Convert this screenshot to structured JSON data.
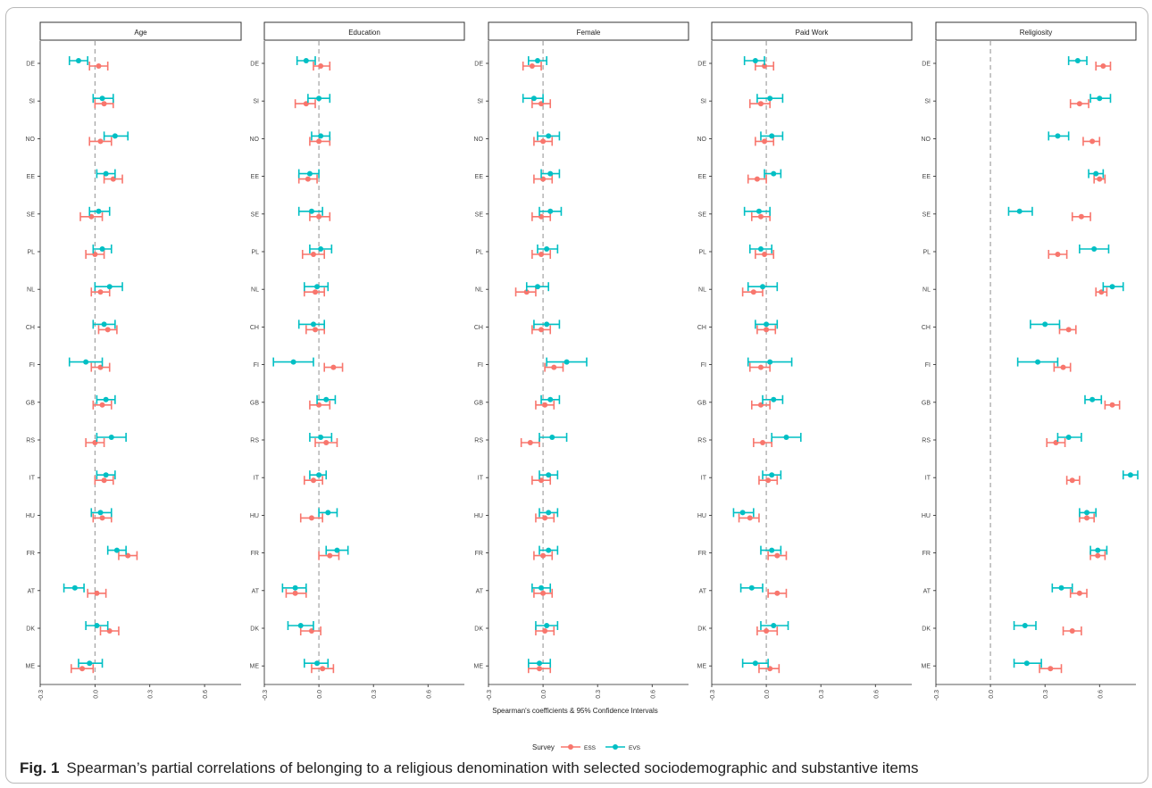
{
  "chart_data": {
    "type": "scatter",
    "subtype": "dot-and-whisker (point estimates with 95% confidence intervals), faceted",
    "xlabel": "Spearman's coefficients & 95% Confidence Intervals",
    "x_ticks": [
      "-0.3",
      "0.0",
      "0.3",
      "0.6"
    ],
    "xlim": [
      -0.3,
      0.8
    ],
    "reference_line_x": 0,
    "grid": false,
    "legend": {
      "title": "Survey",
      "position": "bottom",
      "entries": [
        "ESS",
        "EVS"
      ]
    },
    "colors": {
      "ESS": "#F8766D",
      "EVS": "#00BFC4",
      "refline": "#999999",
      "strip_border": "#333333"
    },
    "countries": [
      "DE",
      "SI",
      "NO",
      "EE",
      "SE",
      "PL",
      "NL",
      "CH",
      "FI",
      "GB",
      "RS",
      "IT",
      "HU",
      "FR",
      "AT",
      "DK",
      "ME"
    ],
    "facets": [
      {
        "name": "Age",
        "series": [
          {
            "name": "ESS",
            "values": [
              0.02,
              0.05,
              0.03,
              0.1,
              -0.02,
              0.0,
              0.03,
              0.07,
              0.03,
              0.04,
              0.0,
              0.05,
              0.04,
              0.18,
              0.01,
              0.08,
              -0.07
            ],
            "lower": [
              -0.03,
              0.0,
              -0.03,
              0.05,
              -0.08,
              -0.05,
              -0.02,
              0.02,
              -0.02,
              -0.01,
              -0.05,
              0.0,
              -0.01,
              0.13,
              -0.04,
              0.03,
              -0.13
            ],
            "upper": [
              0.07,
              0.1,
              0.09,
              0.15,
              0.04,
              0.05,
              0.08,
              0.12,
              0.08,
              0.09,
              0.05,
              0.1,
              0.09,
              0.23,
              0.06,
              0.13,
              -0.01
            ]
          },
          {
            "name": "EVS",
            "values": [
              -0.09,
              0.04,
              0.11,
              0.06,
              0.02,
              0.04,
              0.08,
              0.05,
              -0.05,
              0.06,
              0.09,
              0.06,
              0.03,
              0.12,
              -0.11,
              0.01,
              -0.03
            ],
            "lower": [
              -0.14,
              -0.01,
              0.05,
              0.01,
              -0.03,
              -0.01,
              0.0,
              -0.01,
              -0.14,
              0.01,
              0.01,
              0.01,
              -0.02,
              0.07,
              -0.17,
              -0.05,
              -0.09
            ],
            "upper": [
              -0.04,
              0.1,
              0.18,
              0.11,
              0.08,
              0.09,
              0.15,
              0.11,
              0.04,
              0.11,
              0.17,
              0.11,
              0.09,
              0.17,
              -0.06,
              0.07,
              0.04
            ]
          }
        ]
      },
      {
        "name": "Education",
        "series": [
          {
            "name": "ESS",
            "values": [
              0.01,
              -0.07,
              0.0,
              -0.06,
              0.0,
              -0.03,
              -0.02,
              -0.02,
              0.08,
              0.0,
              0.04,
              -0.03,
              -0.04,
              0.06,
              -0.13,
              -0.04,
              0.02
            ],
            "lower": [
              -0.03,
              -0.13,
              -0.05,
              -0.11,
              -0.05,
              -0.09,
              -0.08,
              -0.07,
              0.03,
              -0.05,
              -0.02,
              -0.08,
              -0.1,
              0.0,
              -0.18,
              -0.1,
              -0.04
            ],
            "upper": [
              0.06,
              -0.02,
              0.06,
              -0.01,
              0.06,
              0.03,
              0.03,
              0.03,
              0.13,
              0.06,
              0.1,
              0.02,
              0.02,
              0.11,
              -0.07,
              0.01,
              0.08
            ]
          },
          {
            "name": "EVS",
            "values": [
              -0.07,
              0.0,
              0.01,
              -0.05,
              -0.04,
              0.01,
              -0.01,
              -0.03,
              -0.14,
              0.04,
              0.01,
              0.0,
              0.05,
              0.1,
              -0.13,
              -0.1,
              -0.01
            ],
            "lower": [
              -0.12,
              -0.06,
              -0.04,
              -0.11,
              -0.11,
              -0.05,
              -0.08,
              -0.11,
              -0.25,
              -0.01,
              -0.05,
              -0.05,
              0.0,
              0.04,
              -0.2,
              -0.17,
              -0.08
            ],
            "upper": [
              -0.02,
              0.06,
              0.06,
              0.0,
              0.02,
              0.07,
              0.05,
              0.03,
              -0.03,
              0.09,
              0.07,
              0.04,
              0.1,
              0.16,
              -0.07,
              -0.03,
              0.05
            ]
          }
        ]
      },
      {
        "name": "Female",
        "series": [
          {
            "name": "ESS",
            "values": [
              -0.06,
              -0.01,
              0.0,
              0.0,
              -0.01,
              -0.01,
              -0.09,
              -0.01,
              0.06,
              0.01,
              -0.07,
              -0.01,
              0.01,
              0.0,
              0.0,
              0.01,
              -0.02
            ],
            "lower": [
              -0.11,
              -0.06,
              -0.05,
              -0.05,
              -0.06,
              -0.06,
              -0.15,
              -0.06,
              0.01,
              -0.04,
              -0.12,
              -0.06,
              -0.04,
              -0.05,
              -0.05,
              -0.04,
              -0.08
            ],
            "upper": [
              -0.01,
              0.04,
              0.05,
              0.05,
              0.04,
              0.04,
              -0.04,
              0.04,
              0.11,
              0.06,
              -0.02,
              0.04,
              0.06,
              0.05,
              0.05,
              0.06,
              0.04
            ]
          },
          {
            "name": "EVS",
            "values": [
              -0.03,
              -0.05,
              0.03,
              0.04,
              0.04,
              0.02,
              -0.03,
              0.02,
              0.13,
              0.04,
              0.05,
              0.03,
              0.03,
              0.03,
              -0.01,
              0.02,
              -0.02
            ],
            "lower": [
              -0.08,
              -0.11,
              -0.03,
              -0.01,
              -0.02,
              -0.03,
              -0.09,
              -0.05,
              0.02,
              -0.01,
              -0.02,
              -0.02,
              -0.02,
              -0.02,
              -0.06,
              -0.04,
              -0.08
            ],
            "upper": [
              0.02,
              0.0,
              0.09,
              0.09,
              0.1,
              0.08,
              0.03,
              0.09,
              0.24,
              0.09,
              0.13,
              0.08,
              0.08,
              0.08,
              0.04,
              0.08,
              0.04
            ]
          }
        ]
      },
      {
        "name": "Paid Work",
        "series": [
          {
            "name": "ESS",
            "values": [
              -0.01,
              -0.03,
              -0.01,
              -0.05,
              -0.03,
              -0.01,
              -0.07,
              0.0,
              -0.03,
              -0.03,
              -0.02,
              0.01,
              -0.09,
              0.06,
              0.06,
              0.0,
              0.02
            ],
            "lower": [
              -0.06,
              -0.09,
              -0.06,
              -0.1,
              -0.08,
              -0.06,
              -0.13,
              -0.05,
              -0.09,
              -0.08,
              -0.07,
              -0.04,
              -0.15,
              0.01,
              0.01,
              -0.05,
              -0.04
            ],
            "upper": [
              0.04,
              0.02,
              0.04,
              0.0,
              0.02,
              0.04,
              -0.02,
              0.05,
              0.02,
              0.02,
              0.03,
              0.06,
              -0.04,
              0.11,
              0.11,
              0.06,
              0.07
            ]
          },
          {
            "name": "EVS",
            "values": [
              -0.06,
              0.02,
              0.03,
              0.04,
              -0.04,
              -0.03,
              -0.02,
              0.0,
              0.02,
              0.04,
              0.11,
              0.03,
              -0.13,
              0.03,
              -0.08,
              0.04,
              -0.06
            ],
            "lower": [
              -0.12,
              -0.05,
              -0.03,
              -0.01,
              -0.12,
              -0.09,
              -0.1,
              -0.06,
              -0.1,
              -0.02,
              0.03,
              -0.02,
              -0.18,
              -0.03,
              -0.14,
              -0.03,
              -0.13
            ],
            "upper": [
              -0.01,
              0.09,
              0.09,
              0.08,
              0.02,
              0.03,
              0.06,
              0.06,
              0.14,
              0.09,
              0.19,
              0.08,
              -0.07,
              0.08,
              -0.02,
              0.12,
              0.01
            ]
          }
        ]
      },
      {
        "name": "Religiosity",
        "series": [
          {
            "name": "ESS",
            "values": [
              0.62,
              0.49,
              0.56,
              0.6,
              0.5,
              0.37,
              0.61,
              0.43,
              0.4,
              0.67,
              0.36,
              0.45,
              0.53,
              0.59,
              0.49,
              0.45,
              0.33
            ],
            "lower": [
              0.58,
              0.44,
              0.51,
              0.57,
              0.45,
              0.32,
              0.58,
              0.38,
              0.35,
              0.63,
              0.31,
              0.42,
              0.49,
              0.55,
              0.44,
              0.4,
              0.27
            ],
            "upper": [
              0.66,
              0.54,
              0.6,
              0.63,
              0.55,
              0.42,
              0.64,
              0.47,
              0.44,
              0.71,
              0.41,
              0.49,
              0.57,
              0.63,
              0.53,
              0.5,
              0.39
            ]
          },
          {
            "name": "EVS",
            "values": [
              0.48,
              0.6,
              0.37,
              0.58,
              0.16,
              0.57,
              0.67,
              0.3,
              0.26,
              0.56,
              0.43,
              0.77,
              0.53,
              0.59,
              0.39,
              0.19,
              0.2
            ],
            "lower": [
              0.43,
              0.55,
              0.32,
              0.54,
              0.1,
              0.49,
              0.62,
              0.22,
              0.15,
              0.52,
              0.37,
              0.73,
              0.49,
              0.55,
              0.34,
              0.13,
              0.13
            ],
            "upper": [
              0.53,
              0.66,
              0.43,
              0.62,
              0.23,
              0.65,
              0.73,
              0.38,
              0.37,
              0.61,
              0.5,
              0.81,
              0.58,
              0.64,
              0.45,
              0.25,
              0.28
            ]
          }
        ]
      }
    ]
  },
  "caption": {
    "label": "Fig. 1",
    "text": "Spearman’s partial correlations of belonging to a religious denomination with selected sociodemographic and substantive items"
  }
}
